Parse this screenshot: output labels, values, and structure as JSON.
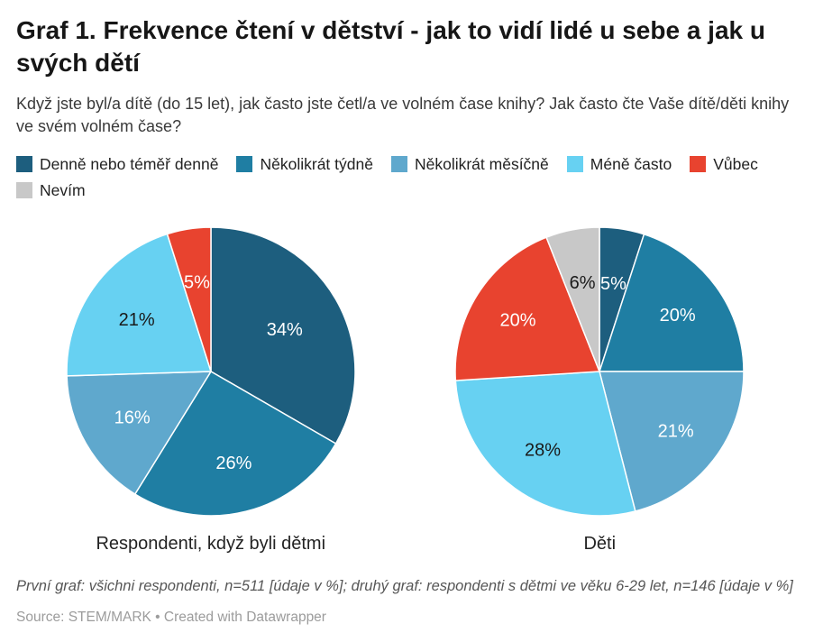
{
  "title": "Graf 1. Frekvence čtení v dětství - jak to vidí lidé u sebe a jak u svých dětí",
  "subtitle": "Když jste byl/a dítě (do 15 let), jak často jste četl/a ve volném čase knihy? Jak často čte Vaše dítě/děti knihy ve svém volném čase?",
  "legend": {
    "position": "top",
    "items": [
      {
        "label": "Denně nebo téměř denně",
        "color": "#1d5e7e"
      },
      {
        "label": "Několikrát týdně",
        "color": "#1f7ea3"
      },
      {
        "label": "Několikrát měsíčně",
        "color": "#5fa8cd"
      },
      {
        "label": "Méně často",
        "color": "#67d1f2"
      },
      {
        "label": "Vůbec",
        "color": "#e8432f"
      },
      {
        "label": "Nevím",
        "color": "#c8c8c8"
      }
    ]
  },
  "chart_data": [
    {
      "type": "pie",
      "title": "Respondenti, když byli dětmi",
      "categories": [
        "Denně nebo téměř denně",
        "Několikrát týdně",
        "Několikrát měsíčně",
        "Méně často",
        "Vůbec"
      ],
      "values": [
        34,
        26,
        16,
        21,
        5
      ],
      "labels": [
        "34%",
        "26%",
        "16%",
        "21%",
        "5%"
      ],
      "colors": [
        "#1d5e7e",
        "#1f7ea3",
        "#5fa8cd",
        "#67d1f2",
        "#e8432f"
      ],
      "label_colors": [
        "#ffffff",
        "#ffffff",
        "#ffffff",
        "#1a1a1a",
        "#ffffff"
      ],
      "label_r": [
        0.59,
        0.65,
        0.63,
        0.63,
        0.63
      ],
      "start_angle": "top",
      "direction": "clockwise"
    },
    {
      "type": "pie",
      "title": "Děti",
      "categories": [
        "Denně nebo téměř denně",
        "Několikrát týdně",
        "Několikrát měsíčně",
        "Méně často",
        "Vůbec",
        "Nevím"
      ],
      "values": [
        5,
        20,
        21,
        28,
        20,
        6
      ],
      "labels": [
        "5%",
        "20%",
        "21%",
        "28%",
        "20%",
        "6%"
      ],
      "colors": [
        "#1d5e7e",
        "#1f7ea3",
        "#5fa8cd",
        "#67d1f2",
        "#e8432f",
        "#c8c8c8"
      ],
      "label_colors": [
        "#ffffff",
        "#ffffff",
        "#ffffff",
        "#1a1a1a",
        "#ffffff",
        "#1a1a1a"
      ],
      "label_r": [
        0.62,
        0.67,
        0.67,
        0.67,
        0.67,
        0.63
      ],
      "start_angle": "top",
      "direction": "clockwise"
    }
  ],
  "footnote": "První graf: všichni respondenti, n=511 [údaje v %]; druhý graf: respondenti s dětmi ve věku 6-29 let, n=146 [údaje v %]",
  "source": "Source: STEM/MARK • Created with Datawrapper"
}
